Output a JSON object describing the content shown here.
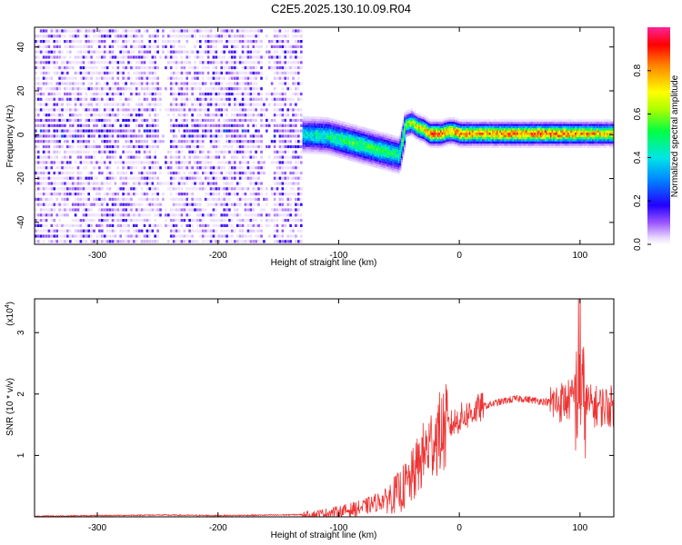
{
  "title": "C2E5.2025.130.10.09.R04",
  "chart_data": [
    {
      "type": "heatmap",
      "xlabel": "Height of straight line (km)",
      "ylabel": "Frequency (Hz)",
      "xlim": [
        -352,
        128
      ],
      "ylim": [
        -50,
        49
      ],
      "x_ticks": [
        -300,
        -200,
        -100,
        0,
        100
      ],
      "y_ticks": [
        -40,
        -20,
        0,
        20,
        40
      ],
      "colorbar": {
        "label": "Normalized spectral amplitude",
        "range": [
          0,
          1
        ],
        "ticks": [
          0.0,
          0.2,
          0.4,
          0.6,
          0.8
        ],
        "tick_labels": [
          "0.0",
          "0.2",
          "0.4",
          "0.6",
          "0.8"
        ],
        "placement": "right"
      },
      "ridge": {
        "x": [
          -352,
          -300,
          -250,
          -200,
          -150,
          -110,
          -90,
          -70,
          -50,
          -45,
          -40,
          -35,
          -30,
          -25,
          -20,
          -15,
          -10,
          -5,
          0,
          20,
          50,
          80,
          100,
          128
        ],
        "y": [
          0,
          -1,
          0,
          1,
          0,
          -1,
          -4,
          -7,
          -10,
          4,
          5,
          3,
          2,
          0,
          0,
          0,
          1,
          1,
          0,
          0,
          0,
          0,
          0,
          0
        ],
        "peak_amplitude": [
          0.25,
          0.25,
          0.3,
          0.3,
          0.35,
          0.5,
          0.55,
          0.55,
          0.5,
          0.65,
          0.7,
          0.75,
          0.8,
          0.9,
          0.95,
          0.9,
          0.85,
          0.9,
          0.9,
          0.85,
          0.9,
          0.9,
          0.85,
          0.8
        ]
      },
      "noise_region_x": [
        -352,
        -130
      ]
    },
    {
      "type": "line",
      "xlabel": "Height of straight line (km)",
      "ylabel": "SNR (10 * v/v)",
      "scale_label": "(x10",
      "scale_exponent": "4",
      "xlim": [
        -352,
        128
      ],
      "ylim": [
        0,
        3.55
      ],
      "x_ticks": [
        -300,
        -200,
        -100,
        0,
        100
      ],
      "y_ticks": [
        1,
        2,
        3
      ],
      "color": "#ee3333",
      "series": [
        {
          "x": [
            -352,
            -300,
            -250,
            -200,
            -150,
            -120,
            -100,
            -80,
            -60,
            -50,
            -40,
            -30,
            -20,
            -10,
            0,
            10,
            20,
            30,
            40,
            50,
            60,
            70,
            80,
            90,
            100,
            110,
            128
          ],
          "y": [
            0.01,
            0.02,
            0.03,
            0.02,
            0.03,
            0.04,
            0.08,
            0.15,
            0.3,
            0.4,
            0.6,
            1.0,
            1.3,
            1.45,
            1.6,
            1.7,
            1.8,
            1.85,
            1.9,
            1.93,
            1.9,
            1.88,
            1.85,
            1.9,
            1.95,
            1.8,
            1.8
          ]
        }
      ]
    }
  ]
}
